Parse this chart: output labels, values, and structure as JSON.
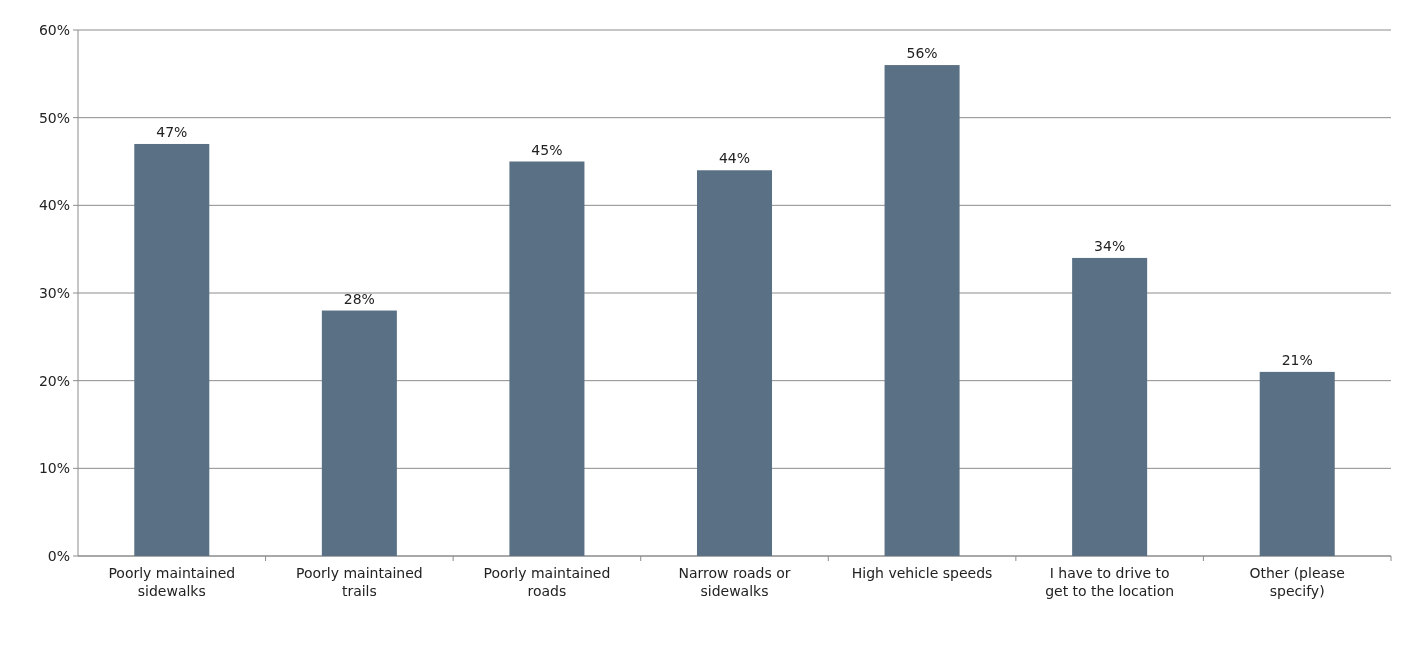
{
  "chart_data": {
    "type": "bar",
    "categories": [
      "Poorly maintained sidewalks",
      "Poorly maintained trails",
      "Poorly maintained roads",
      "Narrow roads or sidewalks",
      "High vehicle speeds",
      "I have to drive to get to the location",
      "Other (please specify)"
    ],
    "values": [
      47,
      28,
      45,
      44,
      56,
      34,
      21
    ],
    "value_labels": [
      "47%",
      "28%",
      "45%",
      "44%",
      "56%",
      "34%",
      "21%"
    ],
    "color": "#5a7085",
    "ylim": [
      0,
      60
    ],
    "yticks": [
      {
        "value": 0,
        "label": "0%"
      },
      {
        "value": 10,
        "label": "10%"
      },
      {
        "value": 20,
        "label": "20%"
      },
      {
        "value": 30,
        "label": "30%"
      },
      {
        "value": 40,
        "label": "40%"
      },
      {
        "value": 50,
        "label": "50%"
      },
      {
        "value": 60,
        "label": "60%"
      }
    ],
    "grid": "y"
  }
}
